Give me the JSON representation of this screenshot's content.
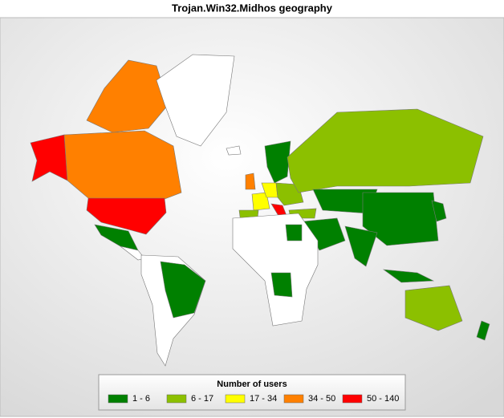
{
  "title": "Trojan.Win32.Midhos geography",
  "legend": {
    "title": "Number of users",
    "items": [
      {
        "label": "1 - 6",
        "color": "#008000"
      },
      {
        "label": "6 - 17",
        "color": "#8cc000"
      },
      {
        "label": "17 - 34",
        "color": "#ffff00"
      },
      {
        "label": "34 - 50",
        "color": "#ff8000"
      },
      {
        "label": "50 - 140",
        "color": "#ff0000"
      }
    ]
  }
}
